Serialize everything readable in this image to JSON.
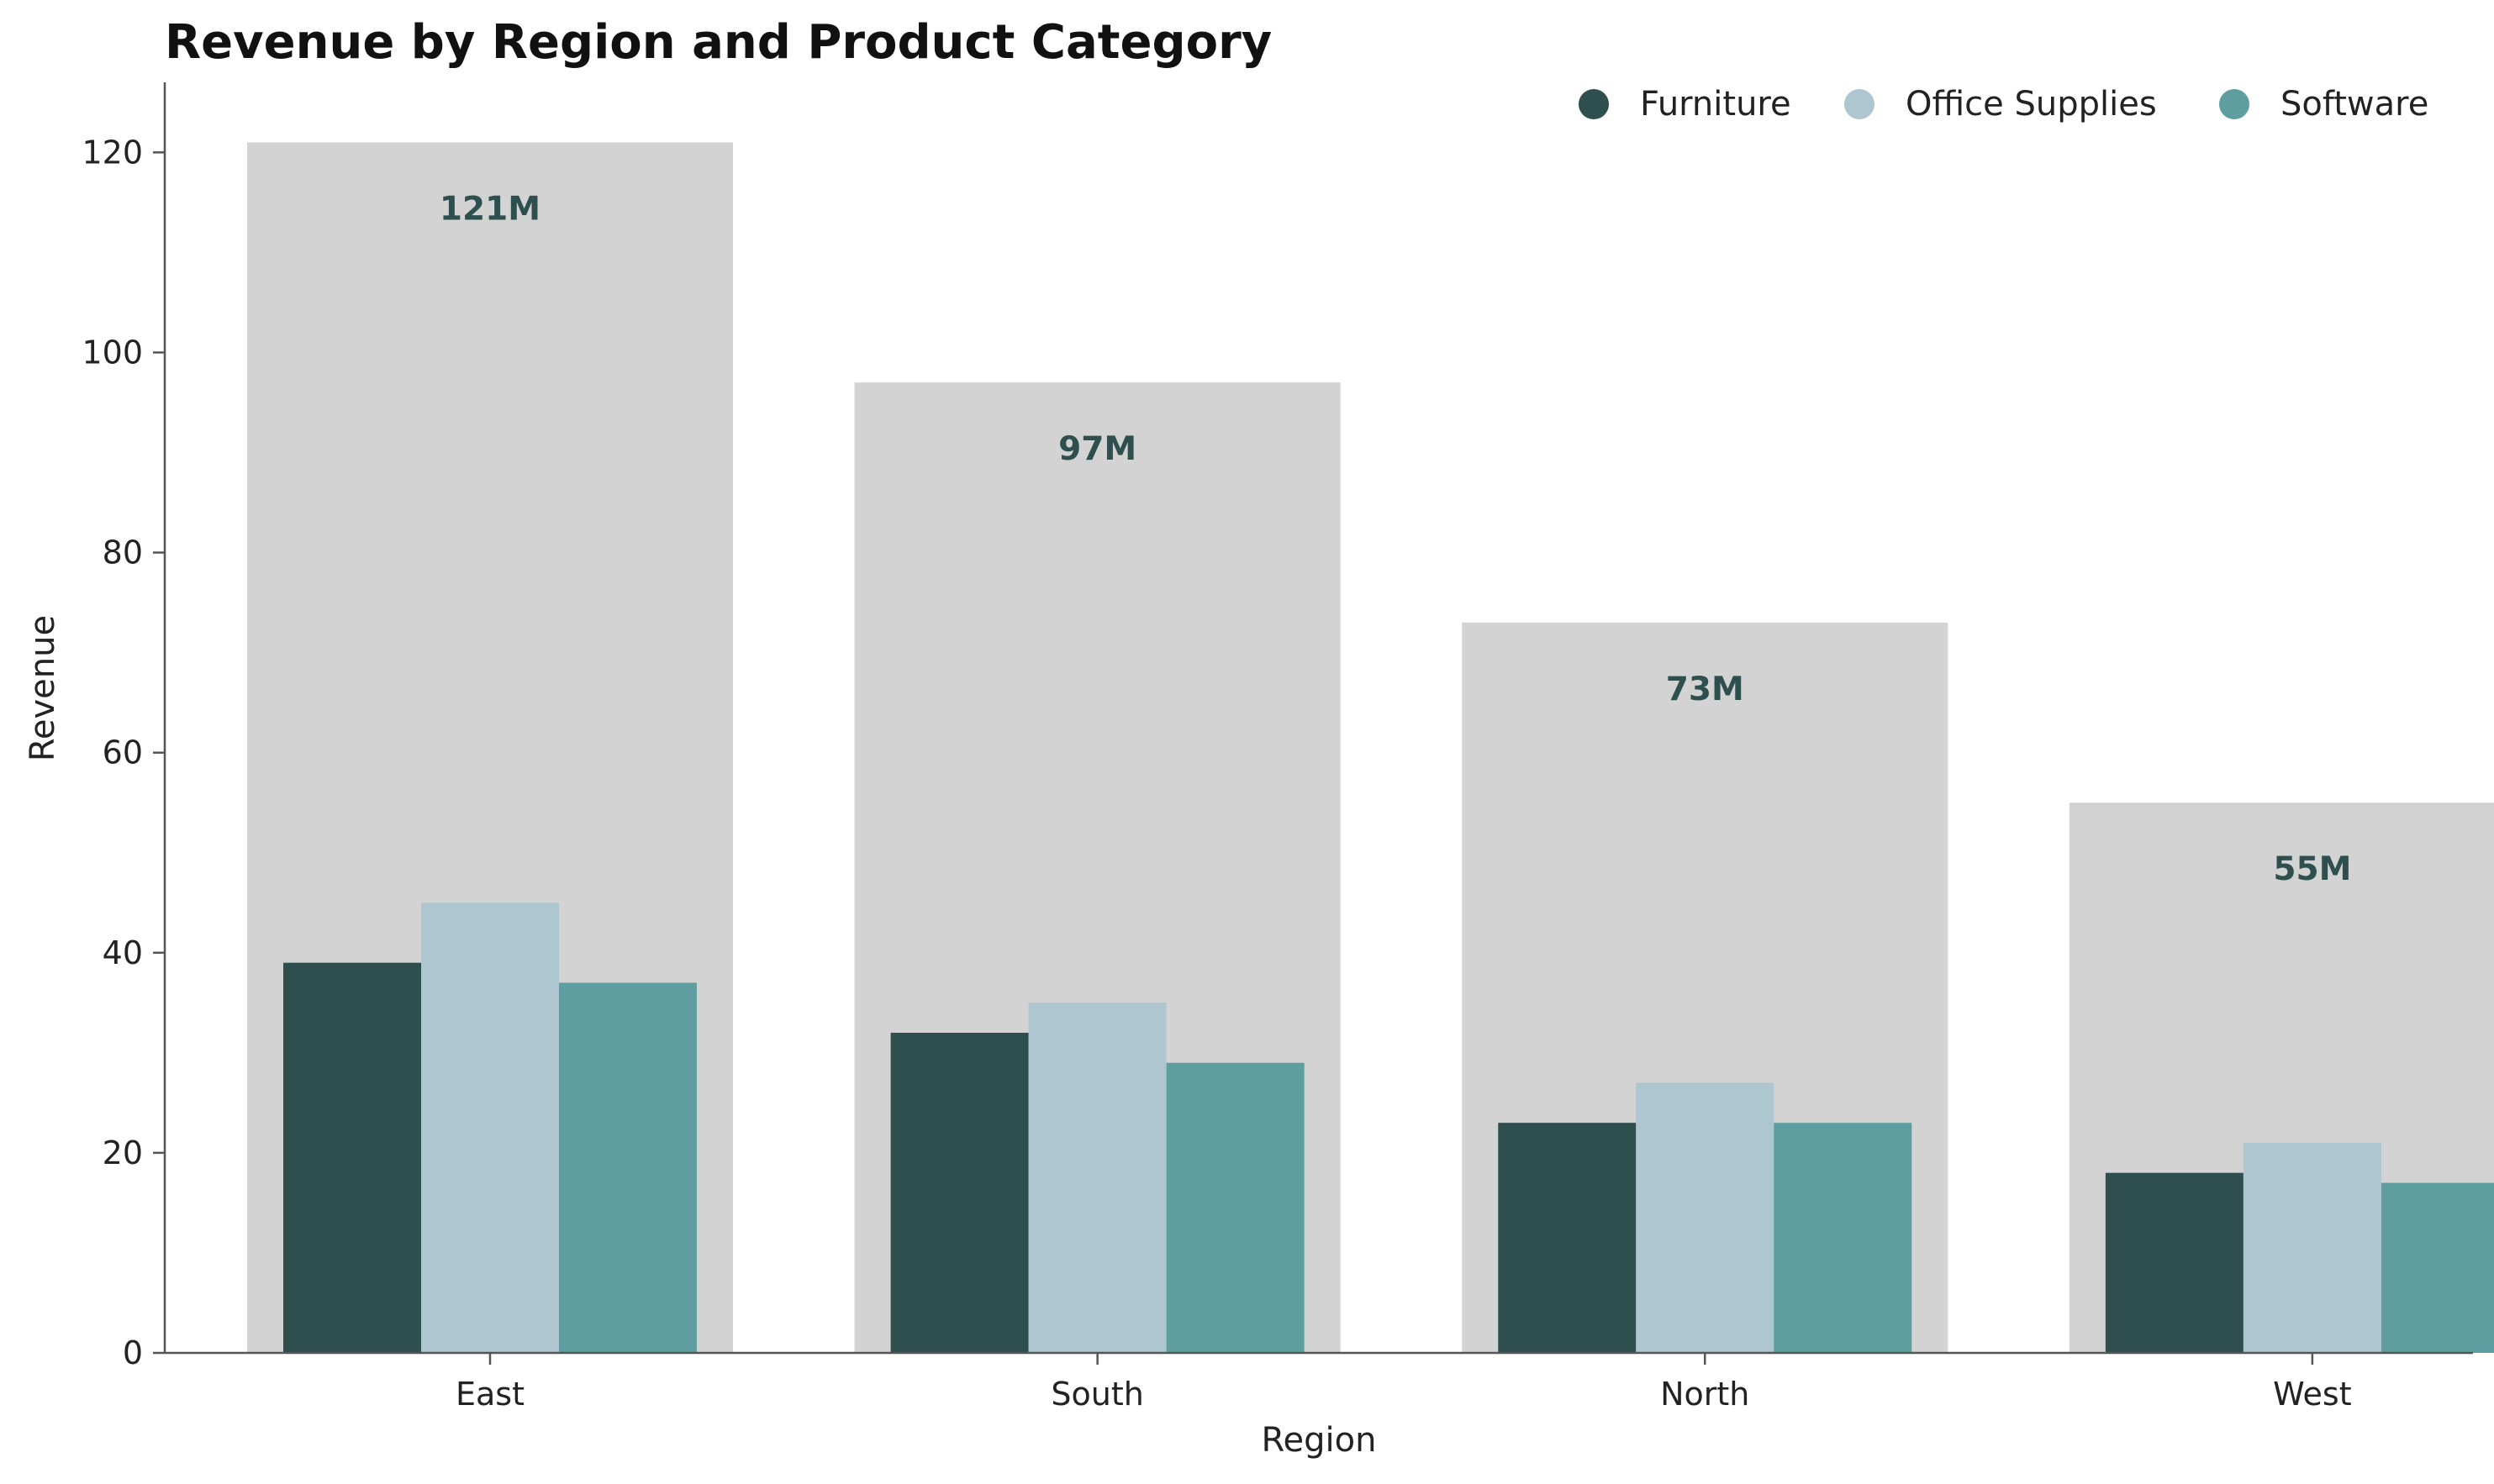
{
  "chart_data": {
    "type": "bar",
    "title": "Revenue by Region and Product Category",
    "xlabel": "Region",
    "ylabel": "Revenue",
    "ylim": [
      0,
      127
    ],
    "yticks": [
      0,
      20,
      40,
      60,
      80,
      100,
      120
    ],
    "categories": [
      "East",
      "South",
      "North",
      "West"
    ],
    "totals": [
      121,
      97,
      73,
      55
    ],
    "total_labels": [
      "121M",
      "97M",
      "73M",
      "55M"
    ],
    "series": [
      {
        "name": "Furniture",
        "color": "#2f4f4f",
        "values": [
          39,
          32,
          23,
          18
        ]
      },
      {
        "name": "Office Supplies",
        "color": "#aec6cf",
        "values": [
          45,
          35,
          27,
          21
        ]
      },
      {
        "name": "Software",
        "color": "#5f9ea0",
        "values": [
          37,
          29,
          23,
          17
        ]
      }
    ],
    "total_bar_color": "#d3d3d3",
    "total_label_color": "#2f4f4f",
    "grid": false,
    "legend_position": "top-right"
  }
}
